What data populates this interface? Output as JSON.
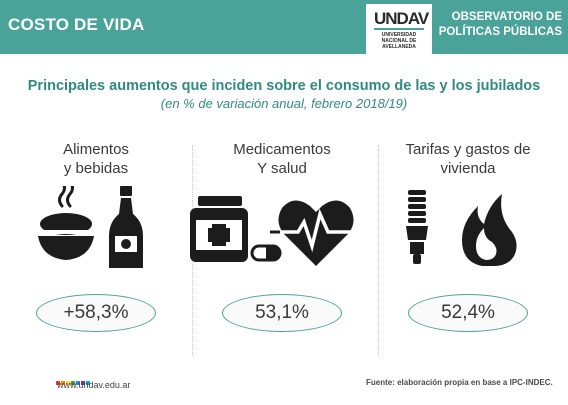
{
  "header": {
    "title": "COSTO DE VIDA",
    "logo_mark": "UNDAV",
    "logo_text": "UNIVERSIDAD\nNACIONAL DE\nAVELLANEDA",
    "observatorio": "OBSERVATORIO DE",
    "politicas": "POLÍTICAS PÚBLICAS"
  },
  "subtitle": {
    "main": "Principales aumentos que inciden sobre el consumo de las y los jubilados",
    "sub": "(en % de variación anual, febrero 2018/19)"
  },
  "categories": [
    {
      "label": "Alimentos\ny bebidas",
      "value": "+58,3%",
      "icons": [
        "food-bowl-icon",
        "bottle-icon"
      ]
    },
    {
      "label": "Medicamentos\nY salud",
      "value": "53,1%",
      "icons": [
        "medicine-jar-icon",
        "pill-icon",
        "heartbeat-icon"
      ]
    },
    {
      "label": "Tarifas y gastos de\nvivienda",
      "value": "52,4%",
      "icons": [
        "lightbulb-icon",
        "flame-icon"
      ]
    }
  ],
  "footer": {
    "url": "www.undav.edu.ar",
    "source": "Fuente: elaboración propia en base a IPC-INDEC.",
    "dot_colors": [
      "#e53935",
      "#fb8c00",
      "#fdd835",
      "#43a047",
      "#1e88e5",
      "#8e24aa",
      "#00acc1"
    ]
  },
  "colors": {
    "brand": "#4aa399",
    "heading": "#2f8b80",
    "icons": "#1c1c1c"
  }
}
